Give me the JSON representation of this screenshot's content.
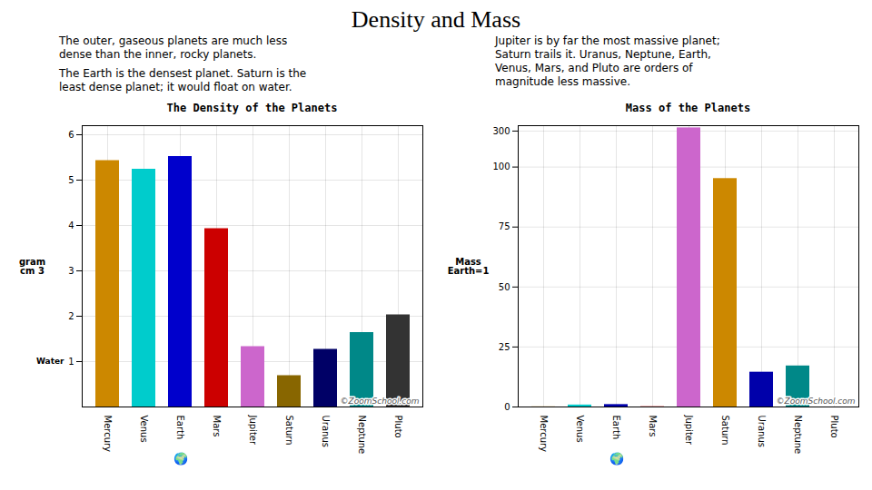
{
  "title": "Density and Mass",
  "annotations": [
    {
      "text": "The outer, gaseous planets are much less\ndense than the inner, rocky planets."
    },
    {
      "text": "The Earth is the densest planet. Saturn is the\nleast dense planet; it would float on water."
    },
    {
      "text": "Jupiter is by far the most massive planet;\nSaturn trails it. Uranus, Neptune, Earth,\nVenus, Mars, and Pluto are orders of\nmagnitude less massive."
    }
  ],
  "chart_data": [
    {
      "type": "bar",
      "title": "The Density of the Planets",
      "y_label": "gram\ncm 3",
      "categories": [
        "Mercury",
        "Venus",
        "Earth",
        "Mars",
        "Jupiter",
        "Saturn",
        "Uranus",
        "Neptune",
        "Pluto"
      ],
      "values": [
        5.43,
        5.24,
        5.52,
        3.93,
        1.33,
        0.69,
        1.27,
        1.64,
        2.03
      ],
      "colors": [
        "#CC8800",
        "#00CCCC",
        "#0000CC",
        "#CC0000",
        "#CC66CC",
        "#886600",
        "#000066",
        "#008888",
        "#333333"
      ],
      "ylim": [
        0,
        6.2
      ],
      "yticks": [
        1,
        2,
        3,
        4,
        5,
        6
      ],
      "grid": true,
      "annotations": [
        {
          "text": "Water",
          "y": 1
        },
        {
          "text": "🌍",
          "x": "Earth"
        },
        {
          "text": "©ZoomSchool.com"
        }
      ]
    },
    {
      "type": "bar",
      "title": "Mass of the Planets",
      "y_label": "Mass\nEarth=1",
      "categories": [
        "Mercury",
        "Venus",
        "Earth",
        "Mars",
        "Jupiter",
        "Saturn",
        "Uranus",
        "Neptune",
        "Pluto"
      ],
      "values": [
        0.055,
        0.815,
        1.0,
        0.107,
        317.8,
        95.2,
        14.5,
        17.1,
        0.002
      ],
      "colors": [
        "#CC8800",
        "#00CCCC",
        "#0000AA",
        "#CC0000",
        "#CC66CC",
        "#CC8800",
        "#0000AA",
        "#008888",
        "#333333"
      ],
      "ylim": [
        0,
        330
      ],
      "yticks": [
        0,
        25,
        50,
        75,
        100,
        300
      ],
      "grid": true,
      "annotations": [
        {
          "text": "🌍",
          "x": "Earth"
        },
        {
          "text": "©ZoomSchool.com"
        }
      ]
    }
  ]
}
